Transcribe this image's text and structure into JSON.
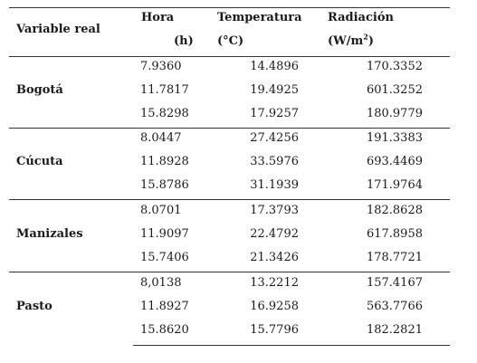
{
  "header": {
    "variable_label": "Variable real",
    "hora_label": "Hora",
    "hora_unit": "(h)",
    "temp_label": "Temperatura",
    "temp_unit": "(°C)",
    "rad_label": "Radiación",
    "rad_unit_base": "(W/m",
    "rad_unit_sup": "2",
    "rad_unit_close": ")"
  },
  "groups": [
    {
      "city": "Bogotá",
      "rows": [
        {
          "hora": "7.9360",
          "temp": "14.4896",
          "rad": "170.3352"
        },
        {
          "hora": "11.7817",
          "temp": "19.4925",
          "rad": "601.3252"
        },
        {
          "hora": "15.8298",
          "temp": "17.9257",
          "rad": "180.9779"
        }
      ]
    },
    {
      "city": "Cúcuta",
      "rows": [
        {
          "hora": "8.0447",
          "temp": "27.4256",
          "rad": "191.3383"
        },
        {
          "hora": "11.8928",
          "temp": "33.5976",
          "rad": "693.4469"
        },
        {
          "hora": "15.8786",
          "temp": "31.1939",
          "rad": "171.9764"
        }
      ]
    },
    {
      "city": "Manizales",
      "rows": [
        {
          "hora": "8.0701",
          "temp": "17.3793",
          "rad": "182.8628"
        },
        {
          "hora": "11.9097",
          "temp": "22.4792",
          "rad": "617.8958"
        },
        {
          "hora": "15.7406",
          "temp": "21.3426",
          "rad": "178.7721"
        }
      ]
    },
    {
      "city": "Pasto",
      "rows": [
        {
          "hora": "8,0138",
          "temp": "13.2212",
          "rad": "157.4167"
        },
        {
          "hora": "11.8927",
          "temp": "16.9258",
          "rad": "563.7766"
        },
        {
          "hora": "15.8620",
          "temp": "15.7796",
          "rad": "182.2821"
        }
      ]
    }
  ]
}
